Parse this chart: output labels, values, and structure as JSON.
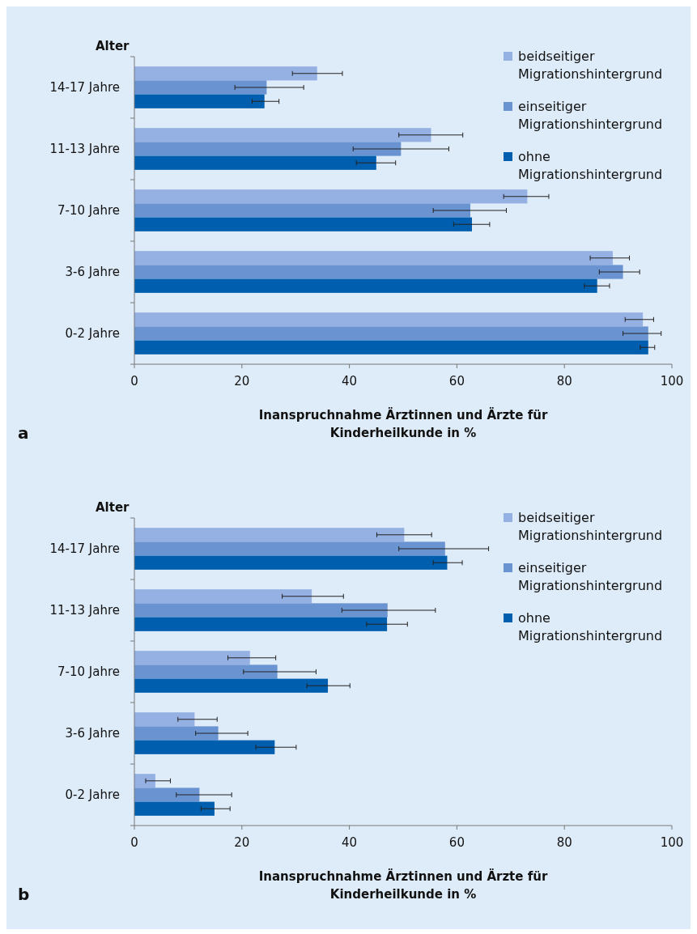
{
  "chart_data": [
    {
      "type": "bar",
      "orientation": "horizontal",
      "ylabel": "Alter",
      "xlabel": "Inanspruchnahme Ärztinnen und Ärzte für Kinderheilkunde in %",
      "annotations": [
        "a"
      ],
      "categories": [
        "14-17 Jahre",
        "11-13 Jahre",
        "7-10 Jahre",
        "3-6 Jahre",
        "0-2 Jahre"
      ],
      "xlim": [
        0,
        100
      ],
      "xticks": [
        0,
        20,
        40,
        60,
        80,
        100
      ],
      "legend": "top right",
      "grid": false,
      "series": [
        {
          "name": "beidseitiger Migrationshintergrund",
          "color": "#95b1e3",
          "values": [
            34.0,
            55.2,
            73.1,
            89.0,
            94.6
          ],
          "errors": [
            [
              29.4,
              38.7
            ],
            [
              49.2,
              61.1
            ],
            [
              68.7,
              77.1
            ],
            [
              84.8,
              92.1
            ],
            [
              91.3,
              96.6
            ]
          ]
        },
        {
          "name": "einseitiger Migrationshintergrund",
          "color": "#6a93d1",
          "values": [
            24.6,
            49.6,
            62.5,
            90.9,
            95.6
          ],
          "errors": [
            [
              18.7,
              31.5
            ],
            [
              40.7,
              58.5
            ],
            [
              55.6,
              69.2
            ],
            [
              86.5,
              94.0
            ],
            [
              90.9,
              98.0
            ]
          ]
        },
        {
          "name": "ohne Migrationshintergrund",
          "color": "#005eae",
          "values": [
            24.2,
            45.0,
            62.8,
            86.1,
            95.6
          ],
          "errors": [
            [
              21.9,
              26.9
            ],
            [
              41.3,
              48.6
            ],
            [
              59.4,
              66.1
            ],
            [
              83.7,
              88.4
            ],
            [
              94.1,
              96.8
            ]
          ]
        }
      ]
    },
    {
      "type": "bar",
      "orientation": "horizontal",
      "ylabel": "Alter",
      "xlabel": "Inanspruchnahme Ärztinnen und Ärzte für Kinderheilkunde in %",
      "annotations": [
        "b"
      ],
      "categories": [
        "14-17 Jahre",
        "11-13 Jahre",
        "7-10 Jahre",
        "3-6 Jahre",
        "0-2 Jahre"
      ],
      "xlim": [
        0,
        100
      ],
      "xticks": [
        0,
        20,
        40,
        60,
        80,
        100
      ],
      "legend": "top right",
      "grid": false,
      "series": [
        {
          "name": "beidseitiger Migrationshintergrund",
          "color": "#95b1e3",
          "values": [
            50.2,
            33.0,
            21.5,
            11.2,
            3.9
          ],
          "errors": [
            [
              45.1,
              55.3
            ],
            [
              27.5,
              38.9
            ],
            [
              17.4,
              26.3
            ],
            [
              8.1,
              15.4
            ],
            [
              2.1,
              6.7
            ]
          ]
        },
        {
          "name": "einseitiger Migrationshintergrund",
          "color": "#6a93d1",
          "values": [
            57.8,
            47.1,
            26.6,
            15.6,
            12.1
          ],
          "errors": [
            [
              49.2,
              65.9
            ],
            [
              38.6,
              56.0
            ],
            [
              20.3,
              33.8
            ],
            [
              11.4,
              21.1
            ],
            [
              7.8,
              18.1
            ]
          ]
        },
        {
          "name": "ohne Migrationshintergrund",
          "color": "#005eae",
          "values": [
            58.2,
            47.0,
            36.0,
            26.1,
            14.9
          ],
          "errors": [
            [
              55.6,
              61.0
            ],
            [
              43.2,
              50.8
            ],
            [
              32.1,
              40.1
            ],
            [
              22.6,
              30.1
            ],
            [
              12.4,
              17.8
            ]
          ]
        }
      ]
    }
  ]
}
